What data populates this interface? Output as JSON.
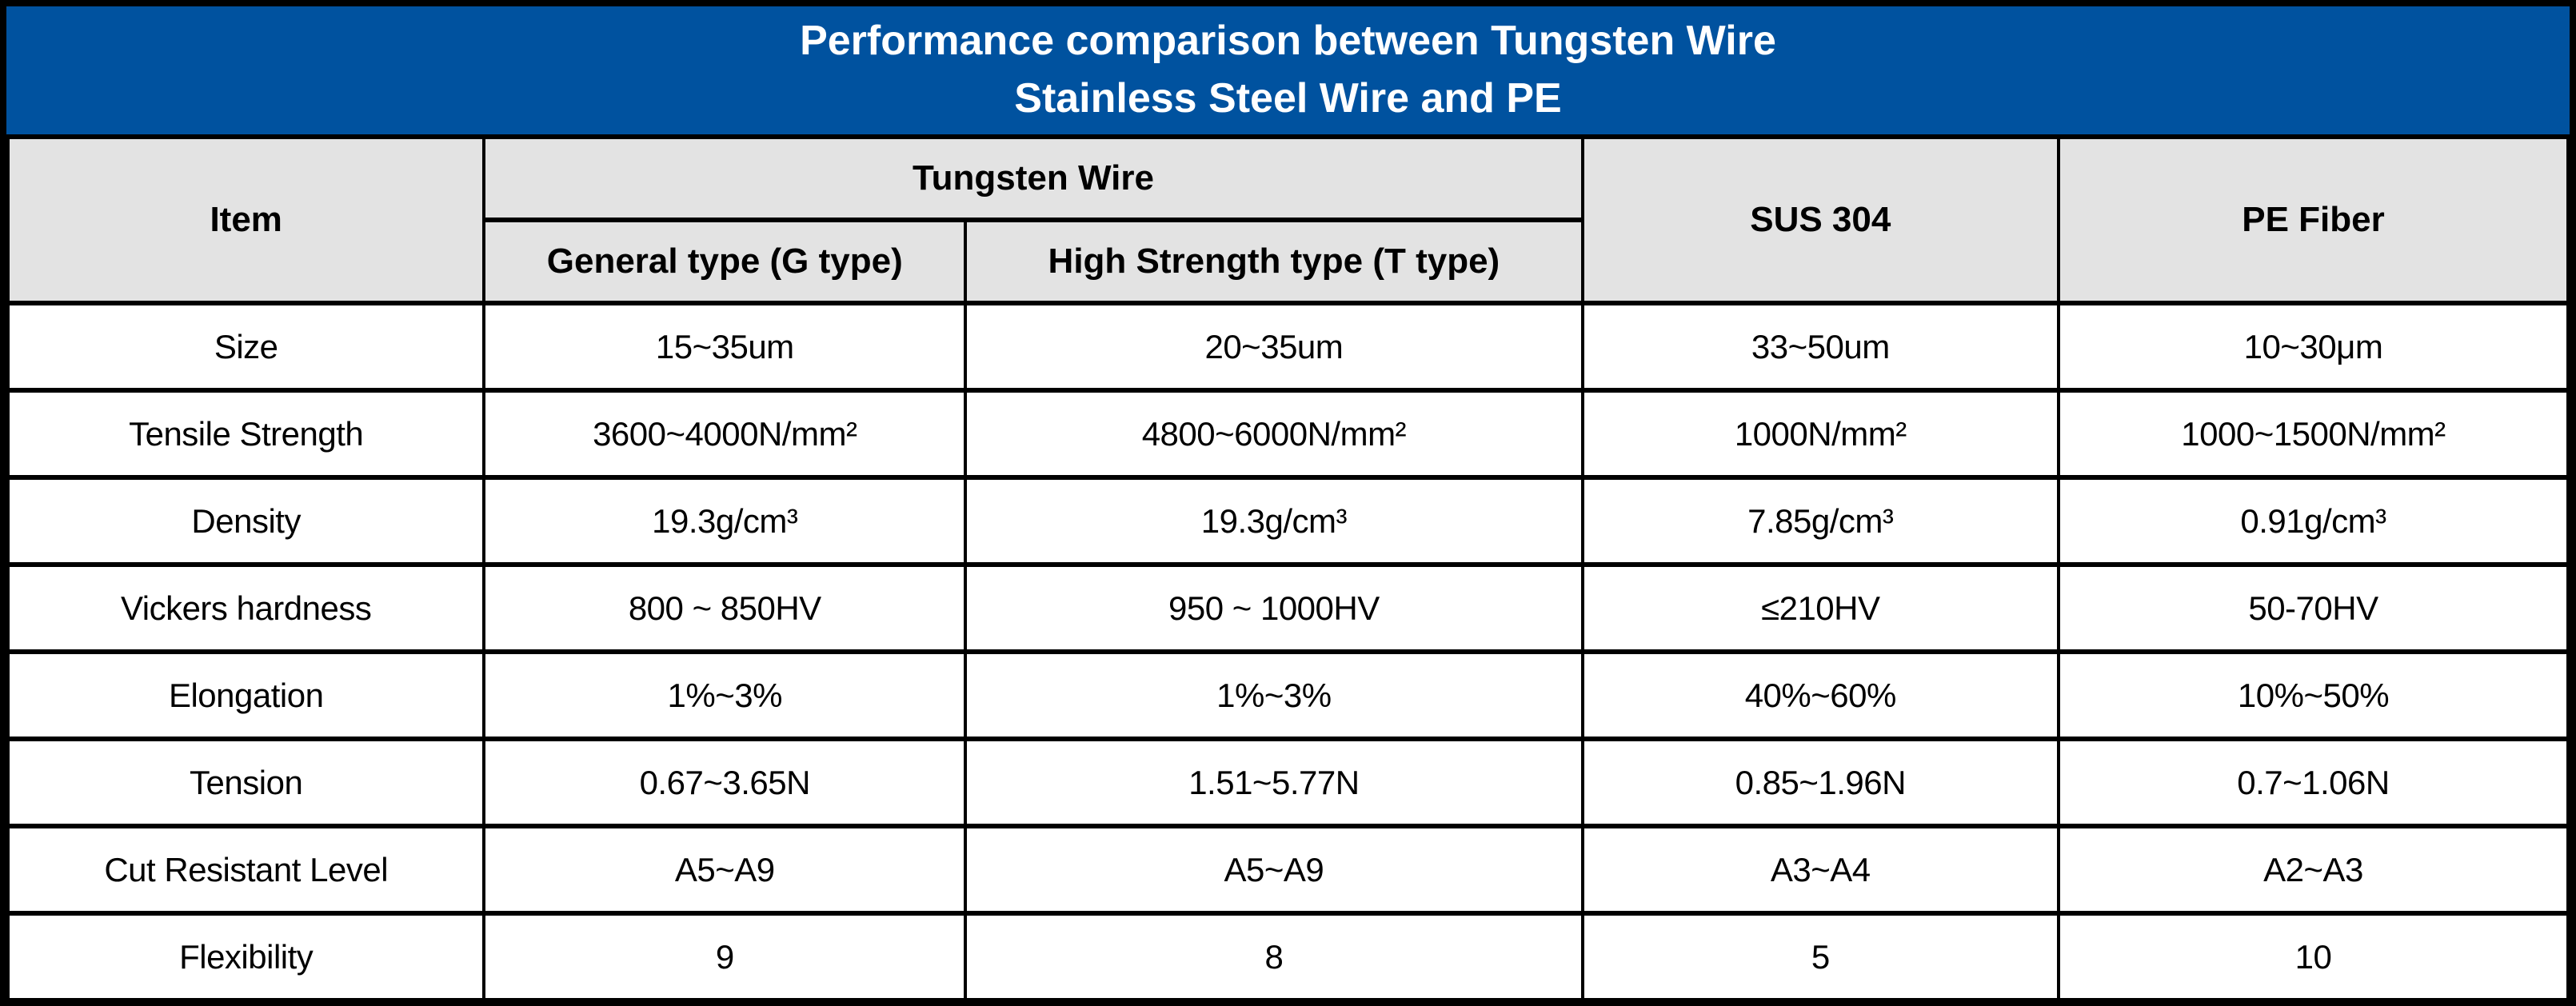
{
  "title": {
    "line1": "Performance comparison between Tungsten Wire",
    "line2": "Stainless Steel Wire and PE"
  },
  "columns": {
    "item": "Item",
    "tungsten_group": "Tungsten Wire",
    "tungsten_general": "General type (G type)",
    "tungsten_high_strength": "High Strength type (T type)",
    "sus304": "SUS 304",
    "pe_fiber": "PE Fiber"
  },
  "rows": [
    {
      "item": "Size",
      "tungsten_general": "15~35um",
      "tungsten_high_strength": "20~35um",
      "sus304": "33~50um",
      "pe_fiber": "10~30μm"
    },
    {
      "item": "Tensile Strength",
      "tungsten_general": "3600~4000N/mm²",
      "tungsten_high_strength": "4800~6000N/mm²",
      "sus304": "1000N/mm²",
      "pe_fiber": "1000~1500N/mm²"
    },
    {
      "item": "Density",
      "tungsten_general": "19.3g/cm³",
      "tungsten_high_strength": "19.3g/cm³",
      "sus304": "7.85g/cm³",
      "pe_fiber": "0.91g/cm³"
    },
    {
      "item": "Vickers hardness",
      "tungsten_general": "800 ~ 850HV",
      "tungsten_high_strength": "950 ~ 1000HV",
      "sus304": "≤210HV",
      "pe_fiber": "50-70HV"
    },
    {
      "item": "Elongation",
      "tungsten_general": "1%~3%",
      "tungsten_high_strength": "1%~3%",
      "sus304": "40%~60%",
      "pe_fiber": "10%~50%"
    },
    {
      "item": "Tension",
      "tungsten_general": "0.67~3.65N",
      "tungsten_high_strength": "1.51~5.77N",
      "sus304": "0.85~1.96N",
      "pe_fiber": "0.7~1.06N"
    },
    {
      "item": "Cut Resistant Level",
      "tungsten_general": "A5~A9",
      "tungsten_high_strength": "A5~A9",
      "sus304": "A3~A4",
      "pe_fiber": "A2~A3"
    },
    {
      "item": "Flexibility",
      "tungsten_general": "9",
      "tungsten_high_strength": "8",
      "sus304": "5",
      "pe_fiber": "10"
    }
  ],
  "colors": {
    "title_bg": "#00529F",
    "title_text": "#FFFFFF",
    "header_bg": "#E3E3E3",
    "cell_bg": "#FFFFFF",
    "border": "#000000",
    "cell_text": "#000000"
  }
}
